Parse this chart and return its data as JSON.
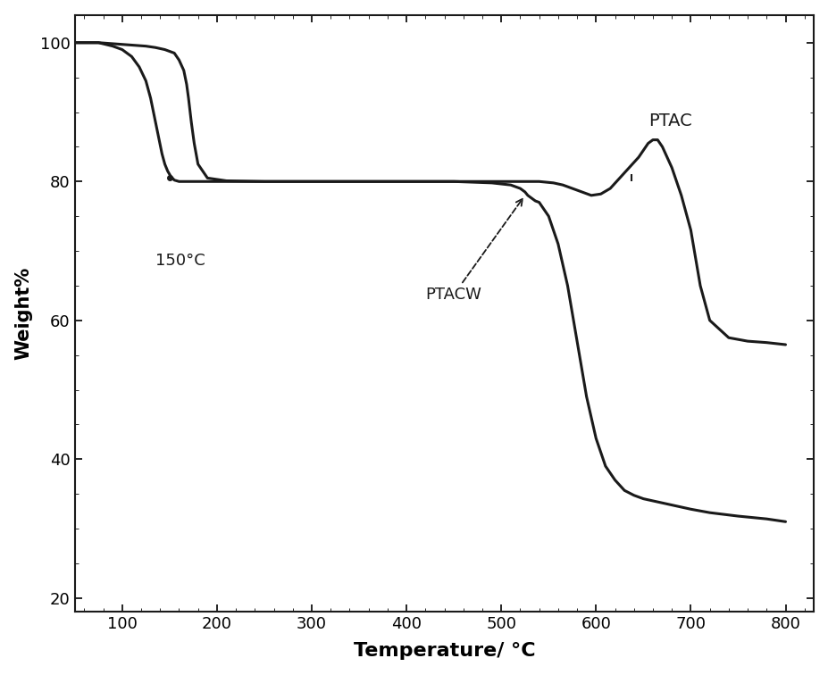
{
  "title": "",
  "xlabel": "Temperature/ °C",
  "ylabel": "Weight%",
  "xlim": [
    50,
    830
  ],
  "ylim": [
    18,
    104
  ],
  "xticks": [
    100,
    200,
    300,
    400,
    500,
    600,
    700,
    800
  ],
  "yticks": [
    20,
    40,
    60,
    80,
    100
  ],
  "line_color": "#1a1a1a",
  "background_color": "#ffffff",
  "annotation_150": "150°C",
  "annotation_PTAC": "PTAC",
  "annotation_PTACW": "PTACW",
  "PTAC_x": [
    50,
    75,
    85,
    95,
    105,
    115,
    125,
    135,
    145,
    155,
    160,
    165,
    168,
    170,
    173,
    176,
    180,
    190,
    210,
    250,
    300,
    350,
    400,
    450,
    500,
    540,
    555,
    565,
    575,
    585,
    595,
    605,
    615,
    625,
    635,
    645,
    650,
    655,
    660,
    665,
    670,
    680,
    690,
    700,
    710,
    720,
    740,
    760,
    780,
    800
  ],
  "PTAC_y": [
    100,
    100,
    99.9,
    99.8,
    99.7,
    99.6,
    99.5,
    99.3,
    99.0,
    98.5,
    97.5,
    96.0,
    94.0,
    92.0,
    88.5,
    85.5,
    82.5,
    80.5,
    80.1,
    80.0,
    80.0,
    80.0,
    80.0,
    80.0,
    80.0,
    80.0,
    79.8,
    79.5,
    79.0,
    78.5,
    78.0,
    78.2,
    79.0,
    80.5,
    82.0,
    83.5,
    84.5,
    85.5,
    86.0,
    86.0,
    85.0,
    82.0,
    78.0,
    73.0,
    65.0,
    60.0,
    57.5,
    57.0,
    56.8,
    56.5
  ],
  "PTACW_x": [
    50,
    75,
    90,
    100,
    110,
    118,
    125,
    130,
    133,
    136,
    139,
    142,
    145,
    148,
    151,
    155,
    160,
    165,
    170,
    180,
    200,
    250,
    300,
    350,
    400,
    450,
    490,
    510,
    520,
    525,
    528,
    530,
    533,
    536,
    540,
    550,
    560,
    570,
    580,
    590,
    600,
    610,
    620,
    630,
    640,
    650,
    660,
    670,
    680,
    690,
    700,
    720,
    750,
    780,
    800
  ],
  "PTACW_y": [
    100,
    100,
    99.5,
    99.0,
    98.0,
    96.5,
    94.5,
    92.0,
    90.0,
    88.0,
    86.0,
    84.0,
    82.5,
    81.5,
    80.8,
    80.2,
    80.0,
    80.0,
    80.0,
    80.0,
    80.0,
    80.0,
    80.0,
    80.0,
    80.0,
    80.0,
    79.8,
    79.5,
    79.0,
    78.5,
    78.0,
    77.8,
    77.5,
    77.2,
    77.0,
    75.0,
    71.0,
    65.0,
    57.0,
    49.0,
    43.0,
    39.0,
    37.0,
    35.5,
    34.8,
    34.3,
    34.0,
    33.7,
    33.4,
    33.1,
    32.8,
    32.3,
    31.8,
    31.4,
    31.0
  ]
}
